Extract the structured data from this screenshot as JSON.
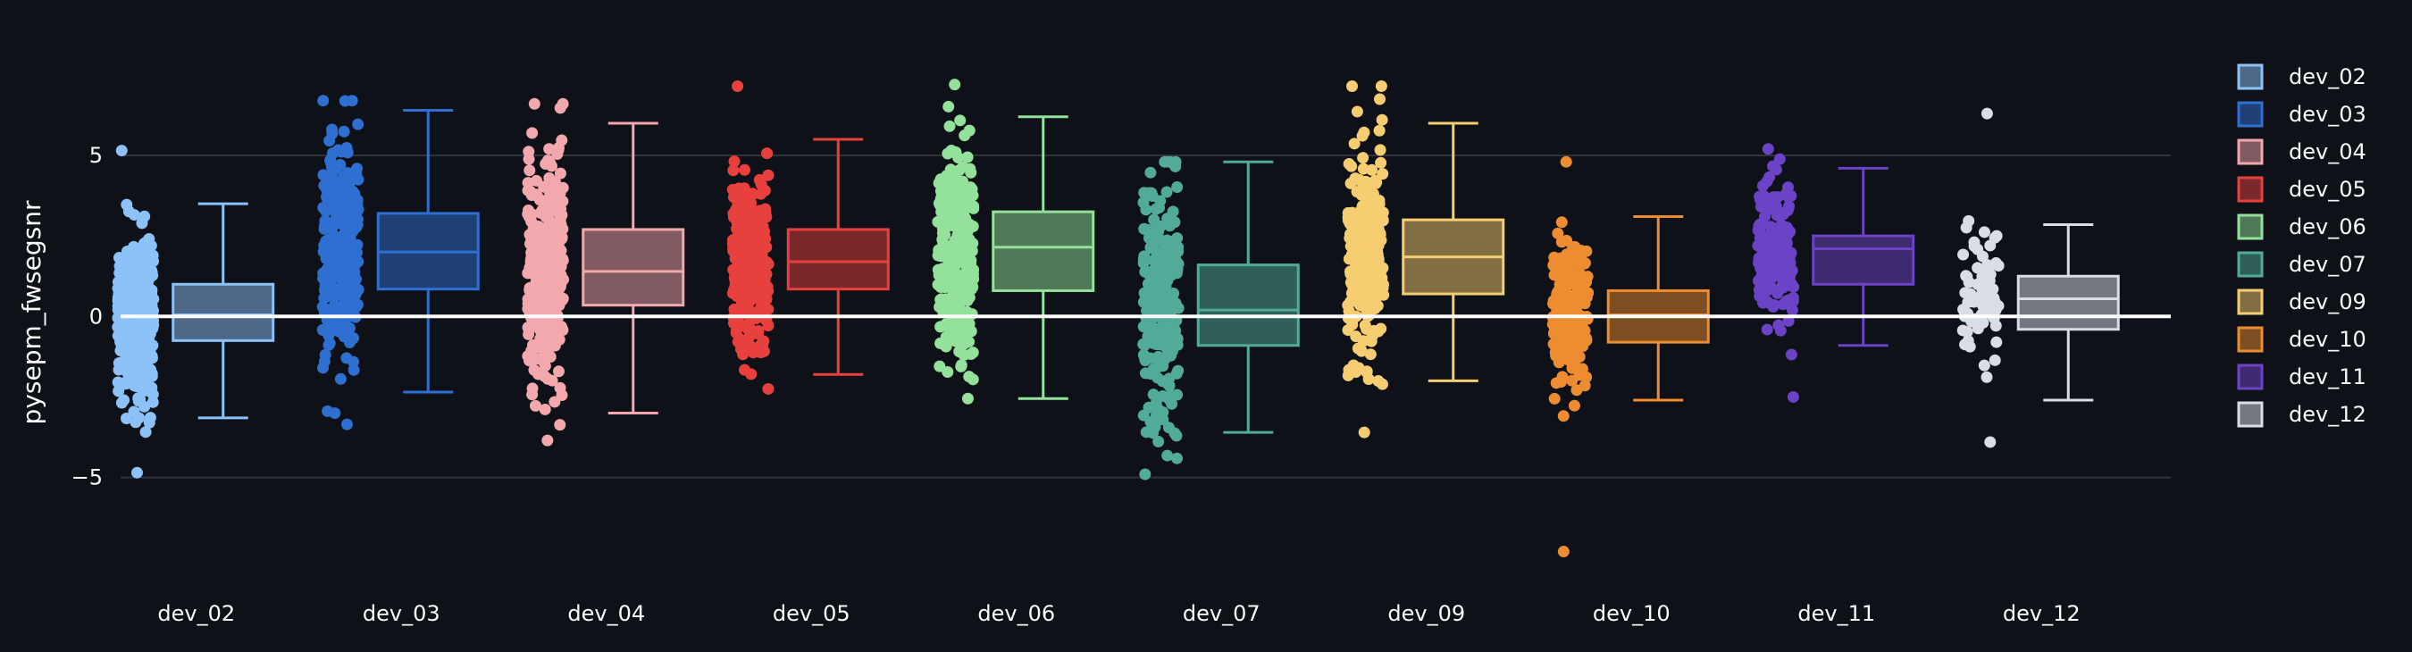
{
  "chart_data": {
    "type": "box",
    "ylabel": "pysepm_fwsegsnr",
    "ylim": [
      -8.2,
      8.3
    ],
    "yticks": [
      -5,
      0,
      5
    ],
    "ytick_labels": [
      "−5",
      "0",
      "5"
    ],
    "grid": true,
    "legend_position": "right",
    "series": [
      {
        "name": "dev_02",
        "color": "#8cc2f7",
        "q1": -0.75,
        "median": 0.05,
        "q3": 1.0,
        "whisker_low": -3.15,
        "whisker_high": 3.5,
        "points_min": -4.85,
        "points_max": 5.15,
        "n_points": 420
      },
      {
        "name": "dev_03",
        "color": "#2e6fd1",
        "q1": 0.85,
        "median": 2.0,
        "q3": 3.2,
        "whisker_low": -2.35,
        "whisker_high": 6.4,
        "points_min": -3.35,
        "points_max": 6.7,
        "n_points": 300
      },
      {
        "name": "dev_04",
        "color": "#f2a8ad",
        "q1": 0.35,
        "median": 1.4,
        "q3": 2.7,
        "whisker_low": -3.0,
        "whisker_high": 6.0,
        "points_min": -3.85,
        "points_max": 6.6,
        "n_points": 320
      },
      {
        "name": "dev_05",
        "color": "#e8403d",
        "q1": 0.85,
        "median": 1.7,
        "q3": 2.7,
        "whisker_low": -1.8,
        "whisker_high": 5.5,
        "points_min": -2.25,
        "points_max": 7.15,
        "n_points": 300
      },
      {
        "name": "dev_06",
        "color": "#93e19a",
        "q1": 0.8,
        "median": 2.15,
        "q3": 3.25,
        "whisker_low": -2.55,
        "whisker_high": 6.2,
        "points_min": -2.55,
        "points_max": 7.2,
        "n_points": 260
      },
      {
        "name": "dev_07",
        "color": "#52ab99",
        "q1": -0.9,
        "median": 0.2,
        "q3": 1.6,
        "whisker_low": -3.6,
        "whisker_high": 4.8,
        "points_min": -4.9,
        "points_max": 4.8,
        "n_points": 230
      },
      {
        "name": "dev_09",
        "color": "#f7cd72",
        "q1": 0.7,
        "median": 1.85,
        "q3": 3.0,
        "whisker_low": -2.0,
        "whisker_high": 6.0,
        "points_min": -3.6,
        "points_max": 7.15,
        "n_points": 260
      },
      {
        "name": "dev_10",
        "color": "#ed8c30",
        "q1": -0.8,
        "median": 0.05,
        "q3": 0.8,
        "whisker_low": -2.6,
        "whisker_high": 3.1,
        "points_min": -7.3,
        "points_max": 4.8,
        "n_points": 170
      },
      {
        "name": "dev_11",
        "color": "#6b43c7",
        "q1": 1.0,
        "median": 2.1,
        "q3": 2.5,
        "whisker_low": -0.9,
        "whisker_high": 4.6,
        "points_min": -2.5,
        "points_max": 5.2,
        "n_points": 140
      },
      {
        "name": "dev_12",
        "color": "#d8dde6",
        "q1": -0.4,
        "median": 0.55,
        "q3": 1.25,
        "whisker_low": -2.6,
        "whisker_high": 2.85,
        "points_min": -3.9,
        "points_max": 6.3,
        "n_points": 70
      }
    ],
    "reference_line": {
      "y": 0,
      "color": "#ffffff"
    }
  }
}
